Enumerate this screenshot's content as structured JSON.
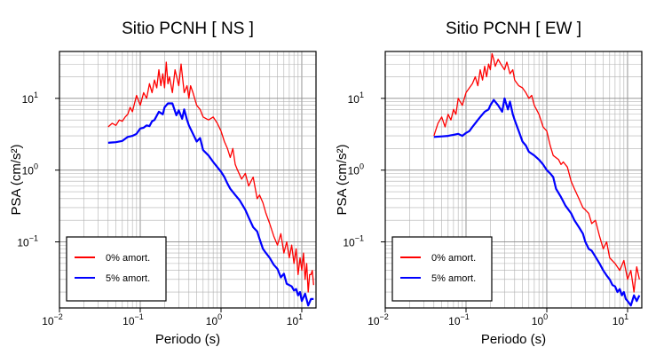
{
  "chart_data": [
    {
      "type": "line",
      "title": "Sitio PCNH [ NS ]",
      "xlabel": "Periodo (s)",
      "ylabel": "PSA (cm/s²)",
      "x_scale": "log",
      "y_scale": "log",
      "xlim": [
        0.01,
        15
      ],
      "ylim": [
        0.012,
        45
      ],
      "grid": true,
      "legend_position": "bottom-left",
      "x_ticks": [
        {
          "value": 0.01,
          "base": "10",
          "exp": "−2"
        },
        {
          "value": 0.1,
          "base": "10",
          "exp": "−1"
        },
        {
          "value": 1,
          "base": "10",
          "exp": "0"
        },
        {
          "value": 10,
          "base": "10",
          "exp": "1"
        }
      ],
      "y_ticks": [
        {
          "value": 0.1,
          "base": "10",
          "exp": "−1"
        },
        {
          "value": 1,
          "base": "10",
          "exp": "0"
        },
        {
          "value": 10,
          "base": "10",
          "exp": "1"
        }
      ],
      "series": [
        {
          "name": "0% amort.",
          "color": "#ff0000",
          "x": [
            0.04,
            0.045,
            0.05,
            0.055,
            0.06,
            0.065,
            0.07,
            0.075,
            0.08,
            0.09,
            0.1,
            0.11,
            0.12,
            0.13,
            0.14,
            0.15,
            0.16,
            0.17,
            0.18,
            0.19,
            0.2,
            0.21,
            0.22,
            0.23,
            0.25,
            0.27,
            0.3,
            0.32,
            0.35,
            0.38,
            0.4,
            0.42,
            0.45,
            0.5,
            0.55,
            0.6,
            0.7,
            0.8,
            0.9,
            1.0,
            1.1,
            1.2,
            1.3,
            1.4,
            1.5,
            1.6,
            1.8,
            2.0,
            2.2,
            2.5,
            2.8,
            3.0,
            3.3,
            3.6,
            4.0,
            4.5,
            5.0,
            5.5,
            6.0,
            6.5,
            7.0,
            7.5,
            8.0,
            8.5,
            9.0,
            9.5,
            10.0,
            10.5,
            11.0,
            11.5,
            12.0,
            12.5,
            13.0,
            13.5,
            14.0
          ],
          "y": [
            4.0,
            4.5,
            4.2,
            5.0,
            4.8,
            5.5,
            6.0,
            7.5,
            6.5,
            11,
            8,
            12,
            10,
            16,
            12,
            18,
            14,
            25,
            15,
            22,
            14,
            32,
            16,
            20,
            12,
            25,
            15,
            30,
            12,
            15,
            10,
            15,
            12,
            8,
            7,
            5.5,
            5,
            5.5,
            4.5,
            3.5,
            2.5,
            2.0,
            1.5,
            2.0,
            1.2,
            1.0,
            0.75,
            0.9,
            0.6,
            0.8,
            0.4,
            0.45,
            0.35,
            0.25,
            0.18,
            0.12,
            0.09,
            0.13,
            0.07,
            0.1,
            0.06,
            0.09,
            0.05,
            0.08,
            0.035,
            0.06,
            0.04,
            0.07,
            0.03,
            0.05,
            0.02,
            0.035,
            0.035,
            0.04,
            0.025
          ]
        },
        {
          "name": "5% amort.",
          "color": "#0000ff",
          "x": [
            0.04,
            0.05,
            0.06,
            0.07,
            0.08,
            0.09,
            0.1,
            0.11,
            0.12,
            0.13,
            0.14,
            0.15,
            0.17,
            0.19,
            0.2,
            0.22,
            0.25,
            0.28,
            0.3,
            0.33,
            0.35,
            0.38,
            0.4,
            0.45,
            0.5,
            0.55,
            0.6,
            0.7,
            0.8,
            0.9,
            1.0,
            1.1,
            1.2,
            1.3,
            1.5,
            1.7,
            2.0,
            2.2,
            2.5,
            2.8,
            3.0,
            3.3,
            3.6,
            4.0,
            4.5,
            5.0,
            5.5,
            6.0,
            6.5,
            7.0,
            7.5,
            8.0,
            8.5,
            9.0,
            9.5,
            10.0,
            11.0,
            12.0,
            13.0,
            14.0
          ],
          "y": [
            2.4,
            2.45,
            2.55,
            2.9,
            3.0,
            3.2,
            3.8,
            3.9,
            4.2,
            4.1,
            4.8,
            5.0,
            6.5,
            6.0,
            7.5,
            8.5,
            8.5,
            5.8,
            6.8,
            5.2,
            7.0,
            5.0,
            4.2,
            3.2,
            2.5,
            2.8,
            1.9,
            1.6,
            1.3,
            1.1,
            0.95,
            0.8,
            0.65,
            0.55,
            0.45,
            0.38,
            0.28,
            0.22,
            0.16,
            0.14,
            0.11,
            0.08,
            0.07,
            0.06,
            0.048,
            0.042,
            0.032,
            0.036,
            0.026,
            0.025,
            0.024,
            0.021,
            0.022,
            0.018,
            0.02,
            0.015,
            0.019,
            0.013,
            0.016,
            0.016
          ]
        }
      ]
    },
    {
      "type": "line",
      "title": "Sitio PCNH [ EW ]",
      "xlabel": "Periodo (s)",
      "ylabel": "PSA (cm/s²)",
      "x_scale": "log",
      "y_scale": "log",
      "xlim": [
        0.01,
        15
      ],
      "ylim": [
        0.012,
        45
      ],
      "grid": true,
      "legend_position": "bottom-left",
      "x_ticks": [
        {
          "value": 0.01,
          "base": "10",
          "exp": "−2"
        },
        {
          "value": 0.1,
          "base": "10",
          "exp": "−1"
        },
        {
          "value": 1,
          "base": "10",
          "exp": "0"
        },
        {
          "value": 10,
          "base": "10",
          "exp": "1"
        }
      ],
      "y_ticks": [
        {
          "value": 0.1,
          "base": "10",
          "exp": "−1"
        },
        {
          "value": 1,
          "base": "10",
          "exp": "0"
        },
        {
          "value": 10,
          "base": "10",
          "exp": "1"
        }
      ],
      "series": [
        {
          "name": "0% amort.",
          "color": "#ff0000",
          "x": [
            0.04,
            0.045,
            0.05,
            0.055,
            0.06,
            0.065,
            0.07,
            0.075,
            0.08,
            0.09,
            0.1,
            0.11,
            0.12,
            0.13,
            0.14,
            0.15,
            0.16,
            0.17,
            0.18,
            0.19,
            0.2,
            0.21,
            0.22,
            0.23,
            0.25,
            0.27,
            0.3,
            0.32,
            0.35,
            0.38,
            0.4,
            0.45,
            0.5,
            0.55,
            0.6,
            0.65,
            0.7,
            0.8,
            0.9,
            1.0,
            1.1,
            1.2,
            1.4,
            1.5,
            1.6,
            1.8,
            2.0,
            2.2,
            2.5,
            2.8,
            3.0,
            3.3,
            3.6,
            4.0,
            4.5,
            5.0,
            5.5,
            6.0,
            7.0,
            8.0,
            9.0,
            10.0,
            11.0,
            12.0,
            13.0,
            14.0
          ],
          "y": [
            3.0,
            4.5,
            5.5,
            4.0,
            6.0,
            5.0,
            7.0,
            6.0,
            10,
            8,
            12,
            14,
            16,
            20,
            15,
            25,
            18,
            28,
            20,
            30,
            25,
            42,
            35,
            28,
            35,
            30,
            25,
            32,
            22,
            25,
            18,
            15,
            14,
            12,
            10,
            11,
            8,
            6,
            4,
            3.5,
            2.2,
            1.6,
            1.4,
            1.2,
            1.3,
            1.1,
            0.7,
            0.55,
            0.4,
            0.3,
            0.28,
            0.25,
            0.18,
            0.2,
            0.12,
            0.08,
            0.1,
            0.06,
            0.05,
            0.04,
            0.055,
            0.03,
            0.04,
            0.02,
            0.045,
            0.03
          ]
        },
        {
          "name": "5% amort.",
          "color": "#0000ff",
          "x": [
            0.04,
            0.05,
            0.06,
            0.07,
            0.08,
            0.09,
            0.1,
            0.11,
            0.12,
            0.13,
            0.14,
            0.15,
            0.17,
            0.19,
            0.2,
            0.22,
            0.25,
            0.28,
            0.3,
            0.33,
            0.35,
            0.38,
            0.4,
            0.45,
            0.5,
            0.55,
            0.6,
            0.7,
            0.8,
            0.9,
            1.0,
            1.1,
            1.2,
            1.3,
            1.5,
            1.7,
            2.0,
            2.2,
            2.5,
            2.8,
            3.0,
            3.3,
            3.6,
            4.0,
            4.5,
            5.0,
            5.5,
            6.0,
            6.5,
            7.0,
            7.5,
            8.0,
            8.5,
            9.0,
            9.5,
            10.0,
            11.0,
            12.0,
            13.0,
            14.0
          ],
          "y": [
            2.9,
            2.95,
            3.0,
            3.1,
            3.2,
            3.0,
            3.3,
            3.5,
            4.0,
            4.5,
            5.0,
            5.5,
            6.5,
            7.0,
            8.0,
            9.5,
            8.0,
            6.5,
            10,
            7.0,
            9.0,
            6.0,
            5.0,
            3.5,
            2.5,
            2.2,
            1.8,
            1.6,
            1.4,
            1.2,
            1.0,
            0.9,
            0.8,
            0.55,
            0.42,
            0.32,
            0.25,
            0.2,
            0.16,
            0.13,
            0.1,
            0.08,
            0.075,
            0.062,
            0.05,
            0.04,
            0.034,
            0.03,
            0.025,
            0.024,
            0.02,
            0.022,
            0.018,
            0.02,
            0.016,
            0.015,
            0.013,
            0.018,
            0.015,
            0.018
          ]
        }
      ]
    }
  ]
}
